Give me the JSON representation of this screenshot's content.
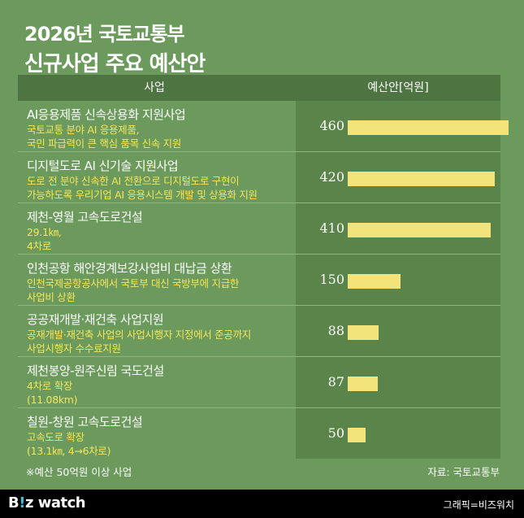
{
  "header": {
    "title_line1": "2026년 국토교통부",
    "title_line2": "신규사업 주요 예산안"
  },
  "table": {
    "col_left": "사업",
    "col_right": "예산안[억원]"
  },
  "rows": [
    {
      "name": "AI응용제품 신속상용화 지원사업",
      "desc": "국토교통 분야 AI 응용제품,\n국민 파급력이 큰 핵심 품목 신속 지원",
      "value": "460"
    },
    {
      "name": "디지털도로 AI 신기술 지원사업",
      "desc": "도로 전 분야 신속한 AI 전환으로 디지털도로 구현이\n가능하도록 우리기업 AI 응용시스템 개발 및 상용화 지원",
      "value": "420"
    },
    {
      "name": "제천-영월 고속도로건설",
      "desc": "29.1㎞,\n4차로",
      "value": "410"
    },
    {
      "name": "인천공항 해안경계보강사업비 대납금 상환",
      "desc": "인천국제공항공사에서 국토부 대신 국방부에 지급한\n사업비 상환",
      "value": "150"
    },
    {
      "name": "공공재개발·재건축 사업지원",
      "desc": "공재개발·재건축 사업의 사업시행자 지정에서 준공까지\n사업시행자 수수료지원",
      "value": "88"
    },
    {
      "name": "제천봉양-원주신림 국도건설",
      "desc": "4차로 확장\n(11.08km)",
      "value": "87"
    },
    {
      "name": "칠원-창원 고속도로건설",
      "desc": "고속도로 확장\n(13.1㎞, 4→6차로)",
      "value": "50"
    }
  ],
  "chart_data": {
    "type": "bar",
    "categories": [
      "AI응용제품 신속상용화 지원사업",
      "디지털도로 AI 신기술 지원사업",
      "제천-영월 고속도로건설",
      "인천공항 해안경계보강사업비 대납금 상환",
      "공공재개발·재건축 사업지원",
      "제천봉양-원주신림 국도건설",
      "칠원-창원 고속도로건설"
    ],
    "values": [
      460,
      420,
      410,
      150,
      88,
      87,
      50
    ],
    "title": "2026년 국토교통부 신규사업 주요 예산안",
    "xlabel": "",
    "ylabel": "예산안[억원]",
    "ylim": [
      0,
      460
    ],
    "orientation": "horizontal",
    "bar_color": "#f2e37a"
  },
  "footer": {
    "footnote": "※예산 50억원 이상 사업",
    "source": "자료: 국토교통부",
    "logo_main": "B",
    "logo_accent": "!",
    "logo_rest": "z watch",
    "credit": "그래픽=비즈워치"
  },
  "colors": {
    "background": "#6b9a5c",
    "header_bar": "#4e7541",
    "value_column": "#5a8449",
    "description_text": "#f5e55a",
    "bar": "#f2e37a"
  }
}
